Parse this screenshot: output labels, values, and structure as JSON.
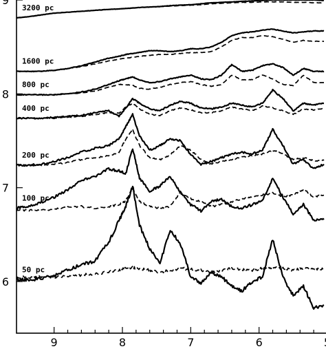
{
  "chart_data": {
    "type": "line",
    "title": "",
    "xlabel": "",
    "ylabel": "",
    "x_reversed": true,
    "xlim": [
      9.55,
      5.0
    ],
    "ylim": [
      5.45,
      9.0
    ],
    "x_ticks": [
      "9",
      "8",
      "7",
      "6",
      "5"
    ],
    "y_ticks": [
      "9",
      "8",
      "7",
      "6"
    ],
    "grid": false,
    "legend": "none",
    "line_styles": {
      "solid": "#000000",
      "dashed": "#000000"
    },
    "x": [
      9.55,
      9.4,
      9.2,
      9.0,
      8.8,
      8.6,
      8.4,
      8.2,
      8.05,
      7.95,
      7.85,
      7.75,
      7.6,
      7.45,
      7.3,
      7.15,
      7.0,
      6.85,
      6.7,
      6.55,
      6.4,
      6.25,
      6.1,
      5.95,
      5.8,
      5.65,
      5.5,
      5.35,
      5.2,
      5.05
    ],
    "series": [
      {
        "label": "3200 pc",
        "solid": [
          8.81,
          8.82,
          8.84,
          8.86,
          8.87,
          8.88,
          8.89,
          8.9,
          8.905,
          8.91,
          8.915,
          8.92,
          8.925,
          8.93,
          8.94,
          8.945,
          8.95,
          8.96,
          8.97,
          8.975,
          8.98,
          8.985,
          8.99,
          8.995,
          9.0,
          9.0,
          9.0,
          9.0,
          9.0,
          8.995
        ],
        "dashed": [
          8.81,
          8.82,
          8.84,
          8.86,
          8.87,
          8.88,
          8.89,
          8.9,
          8.905,
          8.91,
          8.915,
          8.92,
          8.925,
          8.93,
          8.935,
          8.94,
          8.945,
          8.95,
          8.96,
          8.965,
          8.97,
          8.975,
          8.975,
          8.98,
          8.98,
          8.98,
          8.975,
          8.975,
          8.97,
          8.97
        ]
      },
      {
        "label": "1600 pc",
        "solid": [
          8.24,
          8.24,
          8.24,
          8.25,
          8.27,
          8.3,
          8.34,
          8.38,
          8.4,
          8.42,
          8.43,
          8.44,
          8.46,
          8.46,
          8.45,
          8.46,
          8.48,
          8.48,
          8.5,
          8.55,
          8.62,
          8.65,
          8.66,
          8.68,
          8.69,
          8.67,
          8.65,
          8.66,
          8.67,
          8.67
        ],
        "dashed": [
          8.24,
          8.24,
          8.24,
          8.25,
          8.27,
          8.29,
          8.32,
          8.35,
          8.37,
          8.38,
          8.39,
          8.4,
          8.41,
          8.42,
          8.42,
          8.43,
          8.44,
          8.44,
          8.45,
          8.5,
          8.57,
          8.6,
          8.6,
          8.62,
          8.61,
          8.58,
          8.55,
          8.57,
          8.56,
          8.56
        ]
      },
      {
        "label": "800 pc",
        "solid": [
          7.99,
          7.99,
          7.99,
          7.99,
          8.0,
          8.02,
          8.05,
          8.1,
          8.14,
          8.16,
          8.18,
          8.15,
          8.12,
          8.13,
          8.16,
          8.18,
          8.2,
          8.16,
          8.15,
          8.2,
          8.31,
          8.24,
          8.25,
          8.3,
          8.32,
          8.28,
          8.2,
          8.27,
          8.24,
          8.24
        ],
        "dashed": [
          7.99,
          7.99,
          7.99,
          7.99,
          8.0,
          8.01,
          8.03,
          8.07,
          8.1,
          8.1,
          8.09,
          8.06,
          8.05,
          8.07,
          8.1,
          8.12,
          8.13,
          8.1,
          8.08,
          8.1,
          8.2,
          8.15,
          8.15,
          8.2,
          8.16,
          8.1,
          8.09,
          8.2,
          8.12,
          8.12
        ]
      },
      {
        "label": "400 pc",
        "solid": [
          7.74,
          7.74,
          7.74,
          7.75,
          7.76,
          7.77,
          7.8,
          7.82,
          7.76,
          7.85,
          7.95,
          7.9,
          7.84,
          7.82,
          7.88,
          7.92,
          7.9,
          7.85,
          7.84,
          7.86,
          7.9,
          7.88,
          7.86,
          7.9,
          8.04,
          7.95,
          7.82,
          7.9,
          7.88,
          7.9
        ],
        "dashed": [
          7.74,
          7.74,
          7.74,
          7.74,
          7.75,
          7.76,
          7.78,
          7.8,
          7.79,
          7.86,
          7.9,
          7.84,
          7.78,
          7.77,
          7.82,
          7.85,
          7.83,
          7.8,
          7.8,
          7.82,
          7.86,
          7.84,
          7.82,
          7.87,
          7.85,
          7.82,
          7.78,
          7.84,
          7.83,
          7.84
        ]
      },
      {
        "label": "200 pc",
        "solid": [
          7.24,
          7.24,
          7.25,
          7.28,
          7.32,
          7.38,
          7.42,
          7.45,
          7.52,
          7.65,
          7.78,
          7.55,
          7.4,
          7.45,
          7.52,
          7.5,
          7.35,
          7.25,
          7.28,
          7.32,
          7.36,
          7.38,
          7.36,
          7.4,
          7.62,
          7.45,
          7.25,
          7.3,
          7.2,
          7.25
        ],
        "dashed": [
          7.24,
          7.24,
          7.24,
          7.25,
          7.27,
          7.3,
          7.32,
          7.34,
          7.38,
          7.52,
          7.62,
          7.45,
          7.32,
          7.3,
          7.35,
          7.45,
          7.4,
          7.3,
          7.25,
          7.28,
          7.3,
          7.33,
          7.34,
          7.36,
          7.4,
          7.36,
          7.3,
          7.32,
          7.29,
          7.29
        ]
      },
      {
        "label": "100 pc",
        "solid": [
          6.78,
          6.8,
          6.84,
          6.9,
          6.98,
          7.08,
          7.12,
          7.2,
          7.18,
          7.15,
          7.42,
          7.1,
          6.96,
          7.02,
          7.12,
          6.95,
          6.82,
          6.75,
          6.85,
          6.88,
          6.8,
          6.78,
          6.82,
          6.86,
          7.1,
          6.9,
          6.72,
          6.82,
          6.65,
          6.66
        ],
        "dashed": [
          6.76,
          6.76,
          6.76,
          6.77,
          6.79,
          6.8,
          6.78,
          6.8,
          6.82,
          6.86,
          7.0,
          6.85,
          6.8,
          6.78,
          6.8,
          6.95,
          6.88,
          6.85,
          6.8,
          6.82,
          6.85,
          6.88,
          6.9,
          6.92,
          6.95,
          6.9,
          6.93,
          6.98,
          6.9,
          6.92
        ]
      },
      {
        "label": "50 pc",
        "solid": [
          6.02,
          6.02,
          6.03,
          6.06,
          6.12,
          6.18,
          6.22,
          6.42,
          6.65,
          6.8,
          7.02,
          6.6,
          6.35,
          6.2,
          6.55,
          6.4,
          6.05,
          5.98,
          6.1,
          6.05,
          5.95,
          5.9,
          6.0,
          6.05,
          6.45,
          6.05,
          5.85,
          5.95,
          5.72,
          5.75
        ],
        "dashed": [
          6.05,
          6.05,
          6.05,
          6.05,
          6.06,
          6.07,
          6.08,
          6.1,
          6.12,
          6.14,
          6.15,
          6.14,
          6.12,
          6.1,
          6.12,
          6.14,
          6.13,
          6.12,
          6.1,
          6.12,
          6.14,
          6.13,
          6.12,
          6.14,
          6.15,
          6.14,
          6.12,
          6.14,
          6.13,
          6.14
        ]
      }
    ]
  }
}
